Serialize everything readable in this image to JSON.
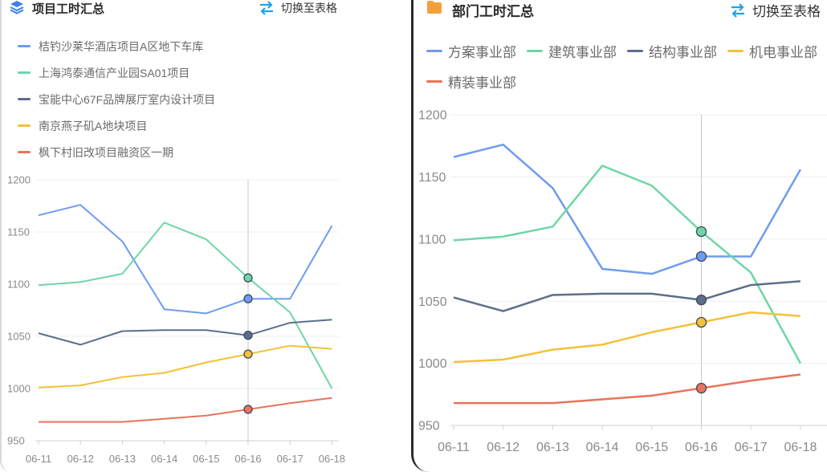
{
  "colors": {
    "blue": "#6f9cf0",
    "green": "#6fd6a7",
    "slate": "#5d6e8c",
    "yellow": "#f3c13a",
    "red": "#e9735c",
    "accent_swap": "#1fa3e6",
    "folder": "#f5a13a",
    "layers": "#3d7ef0"
  },
  "left": {
    "title": "项目工时汇总",
    "title_icon": "layers-icon",
    "switch_label": "切换至表格",
    "switch_icon": "swap-arrows-icon"
  },
  "right": {
    "title": "部门工时汇总",
    "title_icon": "folder-icon",
    "switch_label": "切换至表格",
    "switch_icon": "swap-arrows-icon"
  },
  "chart_data": [
    {
      "type": "line",
      "title": "项目工时汇总",
      "categories": [
        "06-11",
        "06-12",
        "06-13",
        "06-14",
        "06-15",
        "06-16",
        "06-17",
        "06-18"
      ],
      "ylim": [
        950,
        1200
      ],
      "yticks": [
        "950",
        "1000",
        "1050",
        "1100",
        "1150",
        "1200"
      ],
      "legend_position": "top",
      "highlight_index": 5,
      "grid": true,
      "series": [
        {
          "name": "桔钓沙莱华酒店项目A区地下车库",
          "color": "#6f9cf0",
          "values": [
            1166,
            1176,
            1141,
            1076,
            1072,
            1086,
            1086,
            1156
          ]
        },
        {
          "name": "上海鸿泰通信产业园SA01项目",
          "color": "#6fd6a7",
          "values": [
            1099,
            1102,
            1110,
            1159,
            1143,
            1106,
            1073,
            1000
          ]
        },
        {
          "name": "宝能中心67F品牌展厅室内设计项目",
          "color": "#5d6e8c",
          "values": [
            1053,
            1042,
            1055,
            1056,
            1056,
            1051,
            1063,
            1066
          ]
        },
        {
          "name": "南京燕子矶A地块项目",
          "color": "#f3c13a",
          "values": [
            1001,
            1003,
            1011,
            1015,
            1025,
            1033,
            1041,
            1038
          ]
        },
        {
          "name": "枫下村旧改项目融资区一期",
          "color": "#e9735c",
          "values": [
            968,
            968,
            968,
            971,
            974,
            980,
            986,
            991
          ]
        }
      ]
    },
    {
      "type": "line",
      "title": "部门工时汇总",
      "categories": [
        "06-11",
        "06-12",
        "06-13",
        "06-14",
        "06-15",
        "06-16",
        "06-17",
        "06-18"
      ],
      "ylim": [
        950,
        1200
      ],
      "yticks": [
        "950",
        "1000",
        "1050",
        "1100",
        "1150",
        "1200"
      ],
      "legend_position": "top",
      "highlight_index": 5,
      "grid": true,
      "series": [
        {
          "name": "方案事业部",
          "color": "#6f9cf0",
          "values": [
            1166,
            1176,
            1141,
            1076,
            1072,
            1086,
            1086,
            1156
          ]
        },
        {
          "name": "建筑事业部",
          "color": "#6fd6a7",
          "values": [
            1099,
            1102,
            1110,
            1159,
            1143,
            1106,
            1073,
            1000
          ]
        },
        {
          "name": "结构事业部",
          "color": "#5d6e8c",
          "values": [
            1053,
            1042,
            1055,
            1056,
            1056,
            1051,
            1063,
            1066
          ]
        },
        {
          "name": "机电事业部",
          "color": "#f3c13a",
          "values": [
            1001,
            1003,
            1011,
            1015,
            1025,
            1033,
            1041,
            1038
          ]
        },
        {
          "name": "精装事业部",
          "color": "#e9735c",
          "values": [
            968,
            968,
            968,
            971,
            974,
            980,
            986,
            991
          ]
        }
      ]
    }
  ]
}
